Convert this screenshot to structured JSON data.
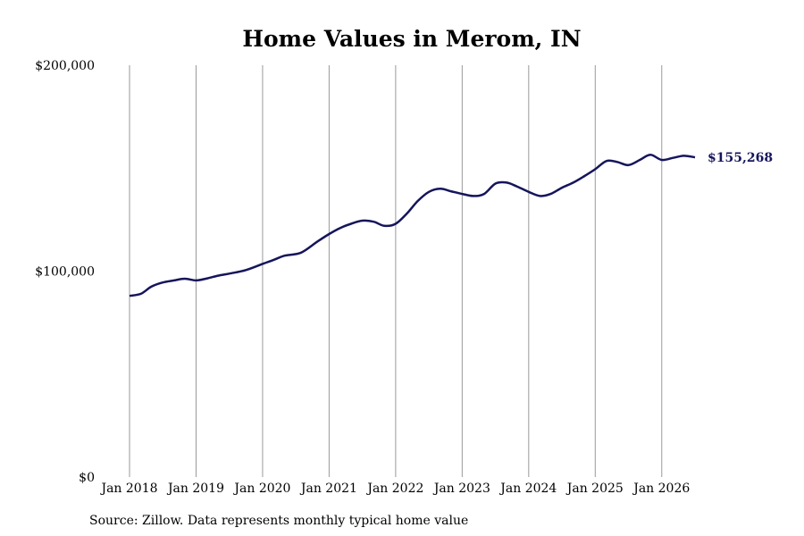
{
  "chart_data": {
    "type": "line",
    "title": "Home Values in Merom, IN",
    "xlabel": "",
    "ylabel": "",
    "ylim": [
      0,
      200000
    ],
    "y_ticks": [
      {
        "value": 0,
        "label": "$0"
      },
      {
        "value": 100000,
        "label": "$100,000"
      },
      {
        "value": 200000,
        "label": "$200,000"
      }
    ],
    "x_ticks": [
      {
        "value": 2018,
        "label": "Jan 2018"
      },
      {
        "value": 2019,
        "label": "Jan 2019"
      },
      {
        "value": 2020,
        "label": "Jan 2020"
      },
      {
        "value": 2021,
        "label": "Jan 2021"
      },
      {
        "value": 2022,
        "label": "Jan 2022"
      },
      {
        "value": 2023,
        "label": "Jan 2023"
      },
      {
        "value": 2024,
        "label": "Jan 2024"
      },
      {
        "value": 2025,
        "label": "Jan 2025"
      },
      {
        "value": 2026,
        "label": "Jan 2026"
      }
    ],
    "xlim": [
      2018,
      2026.5
    ],
    "grid": "vertical",
    "line_color": "#15155c",
    "end_label": "$155,268",
    "series": [
      {
        "values": [
          [
            2018.0,
            88000
          ],
          [
            2018.17,
            89000
          ],
          [
            2018.33,
            92500
          ],
          [
            2018.5,
            94500
          ],
          [
            2018.67,
            95500
          ],
          [
            2018.83,
            96300
          ],
          [
            2019.0,
            95500
          ],
          [
            2019.17,
            96500
          ],
          [
            2019.33,
            97800
          ],
          [
            2019.5,
            98800
          ],
          [
            2019.75,
            100500
          ],
          [
            2020.0,
            103500
          ],
          [
            2020.17,
            105500
          ],
          [
            2020.33,
            107500
          ],
          [
            2020.58,
            109000
          ],
          [
            2020.83,
            114500
          ],
          [
            2021.0,
            118000
          ],
          [
            2021.17,
            121000
          ],
          [
            2021.33,
            123000
          ],
          [
            2021.5,
            124500
          ],
          [
            2021.67,
            124000
          ],
          [
            2021.83,
            122000
          ],
          [
            2022.0,
            123000
          ],
          [
            2022.17,
            128000
          ],
          [
            2022.33,
            134000
          ],
          [
            2022.5,
            138500
          ],
          [
            2022.67,
            140000
          ],
          [
            2022.83,
            138800
          ],
          [
            2023.0,
            137500
          ],
          [
            2023.17,
            136500
          ],
          [
            2023.33,
            137500
          ],
          [
            2023.5,
            142500
          ],
          [
            2023.67,
            143000
          ],
          [
            2023.83,
            141000
          ],
          [
            2024.0,
            138500
          ],
          [
            2024.17,
            136500
          ],
          [
            2024.33,
            137500
          ],
          [
            2024.5,
            140500
          ],
          [
            2024.67,
            143000
          ],
          [
            2024.83,
            146000
          ],
          [
            2025.0,
            149500
          ],
          [
            2025.17,
            153500
          ],
          [
            2025.33,
            153000
          ],
          [
            2025.5,
            151500
          ],
          [
            2025.67,
            154000
          ],
          [
            2025.83,
            156500
          ],
          [
            2026.0,
            154000
          ],
          [
            2026.17,
            155000
          ],
          [
            2026.33,
            156000
          ],
          [
            2026.5,
            155268
          ]
        ]
      }
    ],
    "source": "Source: Zillow. Data represents monthly typical home value"
  }
}
